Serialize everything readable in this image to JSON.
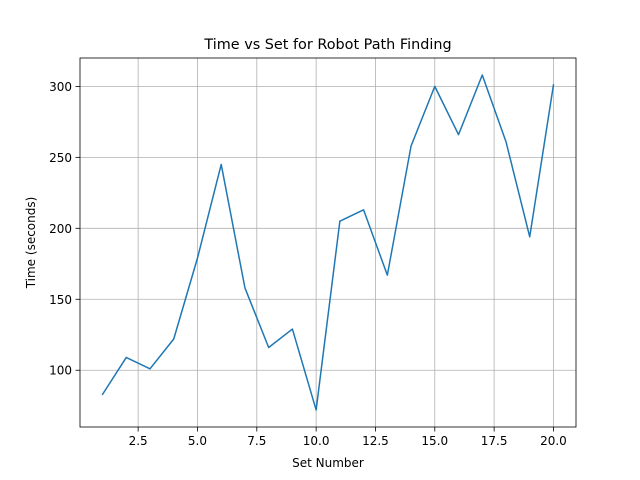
{
  "chart_data": {
    "type": "line",
    "title": "Time vs Set for Robot Path Finding",
    "xlabel": "Set Number",
    "ylabel": "Time (seconds)",
    "xlim": [
      0.05,
      20.95
    ],
    "ylim": [
      60,
      320
    ],
    "grid": true,
    "x_ticks": [
      2.5,
      5.0,
      7.5,
      10.0,
      12.5,
      15.0,
      17.5,
      20.0
    ],
    "x_tick_labels": [
      "2.5",
      "5.0",
      "7.5",
      "10.0",
      "12.5",
      "15.0",
      "17.5",
      "20.0"
    ],
    "y_ticks": [
      100,
      150,
      200,
      250,
      300
    ],
    "y_tick_labels": [
      "100",
      "150",
      "200",
      "250",
      "300"
    ],
    "series": [
      {
        "color": "#1f77b4",
        "x": [
          1,
          2,
          3,
          4,
          5,
          6,
          7,
          8,
          9,
          10,
          11,
          12,
          13,
          14,
          15,
          16,
          17,
          18,
          19,
          20
        ],
        "y": [
          83,
          109,
          101,
          122,
          179,
          245,
          158,
          116,
          129,
          72,
          205,
          213,
          167,
          258,
          300,
          266,
          308,
          261,
          194,
          301
        ]
      }
    ]
  }
}
